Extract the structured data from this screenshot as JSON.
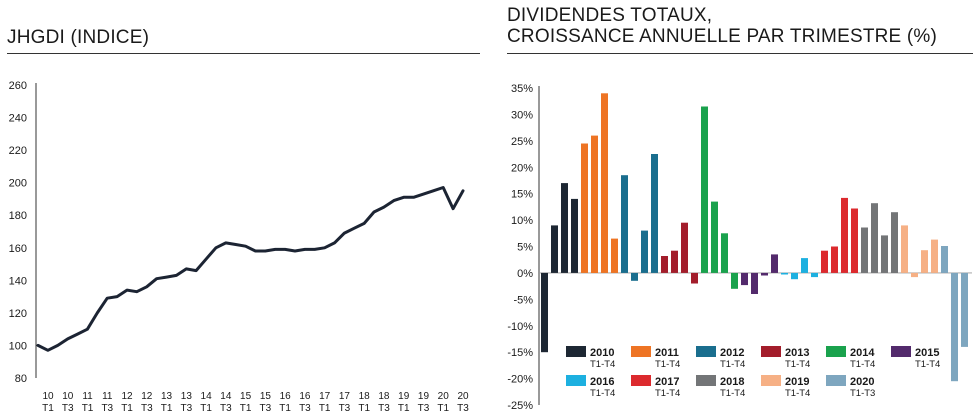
{
  "colors": {
    "line": "#1c2433",
    "c2010": "#1d2733",
    "c2011": "#ee7424",
    "c2012": "#1a6e8e",
    "c2013": "#a31d2b",
    "c2014": "#1aa24d",
    "c2015": "#532a6c",
    "c2016": "#1db0e0",
    "c2017": "#dc2a2e",
    "c2018": "#737577",
    "c2019": "#f6b085",
    "c2020": "#7ea6bf"
  },
  "left": {
    "title": "JHGDI (INDICE)"
  },
  "right": {
    "title_line1": "DIVIDENDES TOTAUX,",
    "title_line2": "CROISSANCE ANNUELLE PAR TRIMESTRE (%)"
  },
  "chart_data": [
    {
      "type": "line",
      "title": "JHGDI (INDICE)",
      "xlabel": "",
      "ylabel": "",
      "ylim": [
        80,
        260
      ],
      "yticks": [
        80,
        100,
        120,
        140,
        160,
        180,
        200,
        220,
        240,
        260
      ],
      "xtick_labels": [
        {
          "top": "10",
          "bottom": "T1"
        },
        {
          "top": "10",
          "bottom": "T3"
        },
        {
          "top": "11",
          "bottom": "T1"
        },
        {
          "top": "11",
          "bottom": "T3"
        },
        {
          "top": "12",
          "bottom": "T1"
        },
        {
          "top": "12",
          "bottom": "T3"
        },
        {
          "top": "13",
          "bottom": "T1"
        },
        {
          "top": "13",
          "bottom": "T3"
        },
        {
          "top": "14",
          "bottom": "T1"
        },
        {
          "top": "14",
          "bottom": "T3"
        },
        {
          "top": "15",
          "bottom": "T1"
        },
        {
          "top": "15",
          "bottom": "T3"
        },
        {
          "top": "16",
          "bottom": "T1"
        },
        {
          "top": "16",
          "bottom": "T3"
        },
        {
          "top": "17",
          "bottom": "T1"
        },
        {
          "top": "17",
          "bottom": "T3"
        },
        {
          "top": "18",
          "bottom": "T1"
        },
        {
          "top": "18",
          "bottom": "T3"
        },
        {
          "top": "19",
          "bottom": "T1"
        },
        {
          "top": "19",
          "bottom": "T3"
        },
        {
          "top": "20",
          "bottom": "T1"
        },
        {
          "top": "20",
          "bottom": "T3"
        }
      ],
      "series": [
        {
          "values": [
            100,
            97,
            100,
            104,
            107,
            110,
            120,
            129,
            130,
            134,
            133,
            136,
            141,
            142,
            143,
            147,
            146,
            153,
            160,
            163,
            162,
            161,
            158,
            158,
            159,
            159,
            158,
            159,
            159,
            160,
            163,
            169,
            172,
            175,
            182,
            185,
            189,
            191,
            191,
            193,
            195,
            197,
            184,
            195
          ]
        }
      ]
    },
    {
      "type": "bar",
      "title": "DIVIDENDES TOTAUX, CROISSANCE ANNUELLE PAR TRIMESTRE (%)",
      "xlabel": "",
      "ylabel": "",
      "ylim": [
        -25,
        35
      ],
      "yticks": [
        -25,
        -20,
        -15,
        -10,
        -5,
        0,
        5,
        10,
        15,
        20,
        25,
        30,
        35
      ],
      "ytick_labels": [
        "-25%",
        "-20%",
        "-15%",
        "-10%",
        "-5%",
        "0%",
        "5%",
        "10%",
        "15%",
        "20%",
        "25%",
        "30%",
        "35%"
      ],
      "legend_position": "bottom",
      "series": [
        {
          "name": "2010",
          "sub": "T1-T4",
          "color_key": "c2010",
          "values": [
            -15,
            9,
            17,
            14
          ]
        },
        {
          "name": "2011",
          "sub": "T1-T4",
          "color_key": "c2011",
          "values": [
            24.5,
            26,
            34,
            6.5
          ]
        },
        {
          "name": "2012",
          "sub": "T1-T4",
          "color_key": "c2012",
          "values": [
            18.5,
            -1.5,
            8,
            22.5
          ]
        },
        {
          "name": "2013",
          "sub": "T1-T4",
          "color_key": "c2013",
          "values": [
            3.2,
            4.2,
            9.5,
            -2
          ]
        },
        {
          "name": "2014",
          "sub": "T1-T4",
          "color_key": "c2014",
          "values": [
            31.5,
            13.5,
            7.5,
            -3
          ]
        },
        {
          "name": "2015",
          "sub": "T1-T4",
          "color_key": "c2015",
          "values": [
            -2.3,
            -4,
            -0.5,
            3.5
          ]
        },
        {
          "name": "2016",
          "sub": "T1-T4",
          "color_key": "c2016",
          "values": [
            -0.3,
            -1.2,
            2.8,
            -0.8
          ]
        },
        {
          "name": "2017",
          "sub": "T1-T4",
          "color_key": "c2017",
          "values": [
            4.2,
            5,
            14.2,
            12.2
          ]
        },
        {
          "name": "2018",
          "sub": "T1-T4",
          "color_key": "c2018",
          "values": [
            8.6,
            13.2,
            7.1,
            11.5
          ]
        },
        {
          "name": "2019",
          "sub": "T1-T4",
          "color_key": "c2019",
          "values": [
            9,
            -0.8,
            4.3,
            6.3
          ]
        },
        {
          "name": "2020",
          "sub": "T1-T3",
          "color_key": "c2020",
          "values": [
            5.1,
            -20.5,
            -14
          ]
        }
      ]
    }
  ]
}
